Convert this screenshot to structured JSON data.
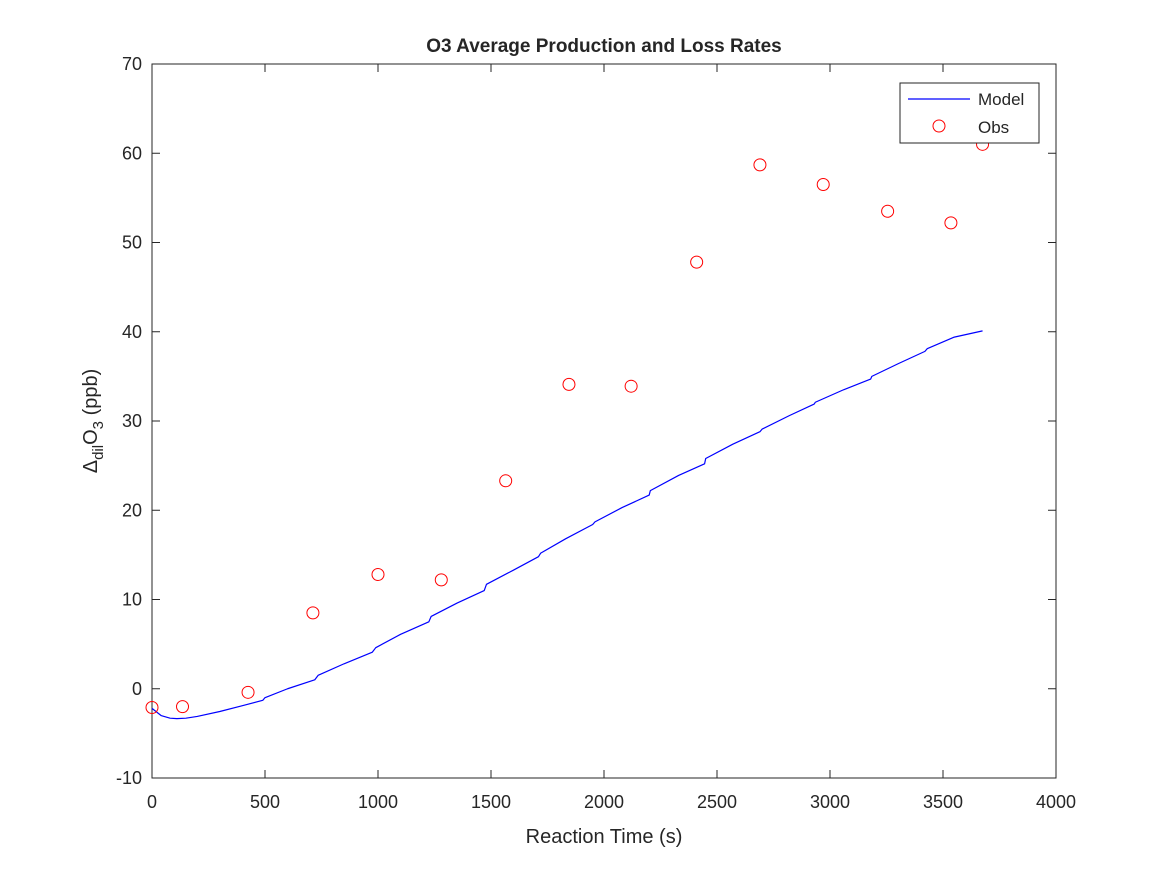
{
  "chart_data": {
    "type": "line",
    "title": "O3 Average Production and Loss Rates",
    "xlabel": "Reaction Time (s)",
    "ylabel": {
      "prefix": "Δ",
      "subscript1": "dil",
      "main": "O",
      "subscript2": "3",
      "suffix": " (ppb)"
    },
    "xlim": [
      0,
      4000
    ],
    "ylim": [
      -10,
      70
    ],
    "xticks": [
      0,
      500,
      1000,
      1500,
      2000,
      2500,
      3000,
      3500,
      4000
    ],
    "yticks": [
      -10,
      0,
      10,
      20,
      30,
      40,
      50,
      60,
      70
    ],
    "xtick_labels": [
      "0",
      "500",
      "1000",
      "1500",
      "2000",
      "2500",
      "3000",
      "3500",
      "4000"
    ],
    "ytick_labels": [
      "-10",
      "0",
      "10",
      "20",
      "30",
      "40",
      "50",
      "60",
      "70"
    ],
    "grid": false,
    "legend_position": "top-right",
    "series": [
      {
        "name": "Model",
        "style": "line",
        "color": "#0000ff",
        "x": [
          0,
          40,
          80,
          110,
          150,
          200,
          300,
          400,
          490,
          500,
          600,
          720,
          735,
          850,
          975,
          990,
          1100,
          1225,
          1235,
          1350,
          1470,
          1480,
          1600,
          1710,
          1720,
          1830,
          1950,
          1960,
          2080,
          2200,
          2205,
          2330,
          2445,
          2450,
          2570,
          2690,
          2700,
          2820,
          2930,
          2935,
          3060,
          3180,
          3185,
          3300,
          3420,
          3430,
          3550,
          3675
        ],
        "y": [
          -2.2,
          -3.0,
          -3.3,
          -3.35,
          -3.3,
          -3.1,
          -2.55,
          -1.9,
          -1.3,
          -1.0,
          0.0,
          1.0,
          1.5,
          2.8,
          4.1,
          4.6,
          6.1,
          7.5,
          8.1,
          9.6,
          11.0,
          11.7,
          13.3,
          14.8,
          15.2,
          16.8,
          18.4,
          18.7,
          20.3,
          21.7,
          22.2,
          23.9,
          25.2,
          25.8,
          27.4,
          28.8,
          29.1,
          30.6,
          31.9,
          32.1,
          33.5,
          34.7,
          35.0,
          36.4,
          37.8,
          38.1,
          39.4,
          40.1
        ]
      },
      {
        "name": "Obs",
        "style": "marker-circle",
        "color": "#ff0000",
        "x": [
          0,
          135,
          425,
          712,
          1000,
          1280,
          1565,
          1845,
          2120,
          2410,
          2690,
          2970,
          3255,
          3535,
          3675
        ],
        "y": [
          -2.1,
          -2.0,
          -0.4,
          8.5,
          12.8,
          12.2,
          23.3,
          34.1,
          33.9,
          47.8,
          58.7,
          56.5,
          53.5,
          52.2,
          61.0
        ]
      }
    ]
  }
}
